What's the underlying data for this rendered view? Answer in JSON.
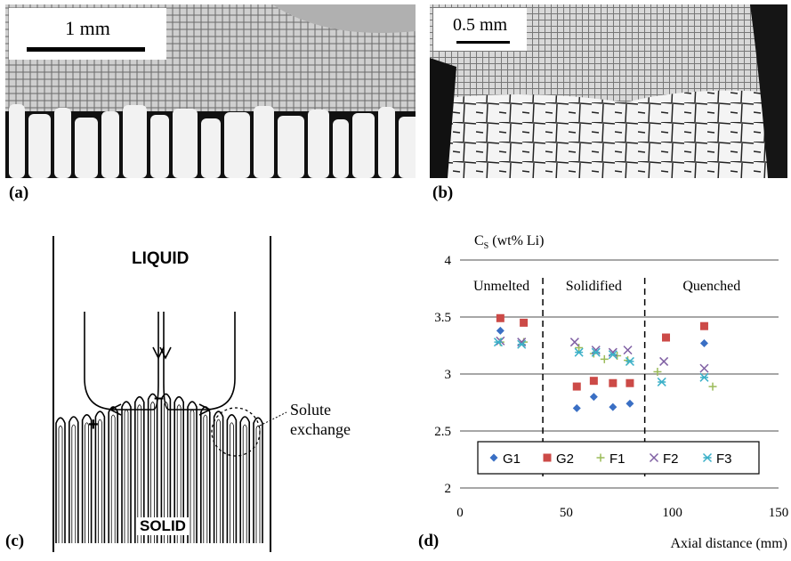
{
  "panel_a": {
    "scale_label": "1 mm",
    "label": "(a)"
  },
  "panel_b": {
    "scale_label": "0.5 mm",
    "label": "(b)"
  },
  "panel_c": {
    "label": "(c)",
    "liquid": "LIQUID",
    "solid": "SOLID",
    "plus": "+",
    "minus": "–",
    "annotation_line1": "Solute",
    "annotation_line2": "exchange"
  },
  "panel_d": {
    "label": "(d)"
  },
  "chart_data": {
    "type": "scatter",
    "ylabel_main": "C",
    "ylabel_sub": "S",
    "ylabel_rest": " (wt% Li)",
    "xlabel": "Axial distance (mm)",
    "xlim": [
      0,
      150
    ],
    "ylim": [
      2,
      4
    ],
    "xticks": [
      0,
      50,
      100,
      150
    ],
    "yticks": [
      2,
      2.5,
      3,
      3.5,
      4
    ],
    "ytick_labels": [
      "2",
      "2.5",
      "3",
      "3.5",
      "4"
    ],
    "grid": "horizontal",
    "legend_placement": "bottom",
    "regions": [
      "Unmelted",
      "Solidified",
      "Quenched"
    ],
    "region_boundaries": [
      39,
      87
    ],
    "series": [
      {
        "name": "G1",
        "marker": "diamond",
        "color": "#3a6fc4",
        "x": [
          19,
          55,
          63,
          72,
          80,
          115
        ],
        "y": [
          3.38,
          2.7,
          2.8,
          2.71,
          2.74,
          3.27
        ]
      },
      {
        "name": "G2",
        "marker": "square",
        "color": "#cc4a47",
        "x": [
          19,
          30,
          55,
          63,
          72,
          80,
          97,
          115
        ],
        "y": [
          3.49,
          3.45,
          2.89,
          2.94,
          2.92,
          2.92,
          3.32,
          3.42
        ]
      },
      {
        "name": "F1",
        "marker": "plus",
        "color": "#9bbb59",
        "x": [
          19,
          30,
          56,
          63,
          68,
          74,
          79,
          93,
          119
        ],
        "y": [
          3.28,
          3.28,
          3.23,
          3.18,
          3.13,
          3.16,
          3.12,
          3.02,
          2.89
        ]
      },
      {
        "name": "F2",
        "marker": "x",
        "color": "#7f5fa3",
        "x": [
          19,
          29,
          54,
          64,
          72,
          79,
          96,
          115
        ],
        "y": [
          3.29,
          3.28,
          3.28,
          3.21,
          3.19,
          3.21,
          3.11,
          3.05
        ]
      },
      {
        "name": "F3",
        "marker": "asterisk",
        "color": "#3bb0c8",
        "x": [
          18,
          29,
          56,
          64,
          72,
          80,
          95,
          115
        ],
        "y": [
          3.28,
          3.26,
          3.19,
          3.19,
          3.17,
          3.11,
          2.93,
          2.97
        ]
      }
    ]
  }
}
